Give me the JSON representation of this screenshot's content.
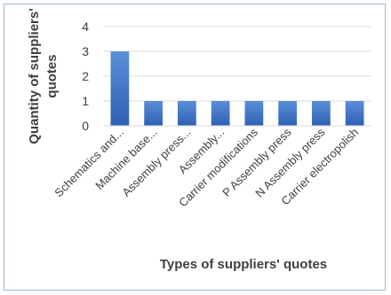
{
  "chart_data": {
    "type": "bar",
    "categories": [
      "Schematics and...",
      "Machine base...",
      "Assembly press...",
      "Assembly...",
      "Carrier modifications",
      "P Assembly press",
      "N Assembly press",
      "Carrier electropolish"
    ],
    "values": [
      3,
      1,
      1,
      1,
      1,
      1,
      1,
      1
    ],
    "xlabel": "Types of suppliers' quotes",
    "ylabel": "Quantity of suppliers' quotes",
    "ylim": [
      0,
      4
    ],
    "yticks": [
      0,
      1,
      2,
      3,
      4
    ],
    "grid": true,
    "legend": "none",
    "colors": {
      "bar_top": "#5b8fd8",
      "bar_bottom": "#2f5fb3",
      "grid": "#d9d9d9",
      "border": "#9db9d8",
      "text": "#404040"
    }
  }
}
